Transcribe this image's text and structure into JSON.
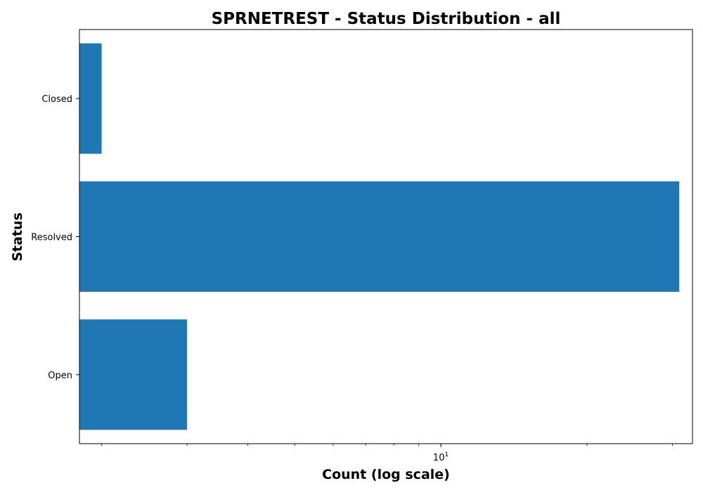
{
  "chart_data": {
    "type": "bar",
    "orientation": "horizontal",
    "title": "SPRNETREST - Status Distribution - all",
    "xlabel": "Count (log scale)",
    "ylabel": "Status",
    "categories": [
      "Closed",
      "Resolved",
      "Open"
    ],
    "values": [
      2,
      31,
      3
    ],
    "xscale": "log",
    "xlim": [
      1.8,
      33
    ],
    "x_major_ticks": [
      {
        "value": 10,
        "base": "10",
        "exponent": "1"
      }
    ],
    "x_minor_ticks": [
      2,
      3,
      4,
      5,
      6,
      7,
      8,
      9,
      20,
      30
    ],
    "bar_color": "#1f77b4",
    "grid": false,
    "legend": "none"
  }
}
